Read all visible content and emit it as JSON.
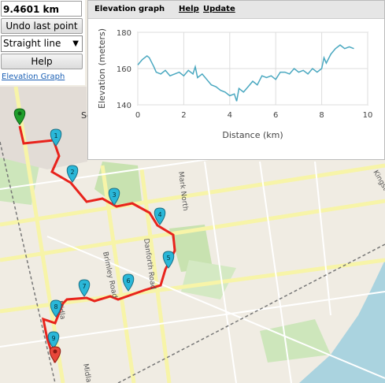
{
  "panel": {
    "distance": "9.4601 km",
    "undo_label": "Undo last point",
    "mode_value": "Straight line",
    "help_label": "Help",
    "elevation_link": "Elevation Graph"
  },
  "graph_window": {
    "title": "Elevation graph",
    "help": "Help",
    "update": "Update"
  },
  "map": {
    "labels": [
      "Scarbo",
      "Brimley Road",
      "Danforth Road",
      "Midla",
      "Midla",
      "Kingst",
      "Mark North"
    ],
    "waypoints": [
      "1",
      "2",
      "3",
      "4",
      "5",
      "6",
      "7",
      "8",
      "9"
    ],
    "route_color": "#e8231c",
    "marker_color": "#2ab7d8",
    "start_color": "#1f9e2c",
    "end_color": "#e8473a"
  },
  "chart_data": {
    "type": "line",
    "xlabel": "Distance (km)",
    "ylabel": "Elevation (meters)",
    "xlim": [
      0,
      10
    ],
    "ylim": [
      140,
      180
    ],
    "xticks": [
      "0",
      "2",
      "4",
      "6",
      "8",
      "10"
    ],
    "yticks": [
      "140",
      "160",
      "180"
    ],
    "grid": true,
    "color": "#4aa8c0",
    "x": [
      0,
      0.2,
      0.4,
      0.5,
      0.7,
      0.8,
      1.0,
      1.2,
      1.4,
      1.6,
      1.8,
      2.0,
      2.2,
      2.4,
      2.5,
      2.6,
      2.8,
      3.0,
      3.2,
      3.4,
      3.6,
      3.8,
      4.0,
      4.2,
      4.3,
      4.4,
      4.6,
      4.8,
      5.0,
      5.2,
      5.4,
      5.6,
      5.8,
      6.0,
      6.2,
      6.4,
      6.6,
      6.8,
      7.0,
      7.2,
      7.4,
      7.6,
      7.8,
      8.0,
      8.1,
      8.2,
      8.4,
      8.6,
      8.8,
      9.0,
      9.2,
      9.4
    ],
    "y": [
      162,
      165,
      167,
      166,
      161,
      158,
      157,
      159,
      156,
      157,
      158,
      156,
      159,
      157,
      161,
      155,
      157,
      154,
      151,
      150,
      148,
      147,
      145,
      146,
      142,
      149,
      147,
      150,
      153,
      151,
      156,
      155,
      156,
      154,
      158,
      158,
      157,
      160,
      158,
      159,
      157,
      160,
      158,
      160,
      166,
      163,
      168,
      171,
      173,
      171,
      172,
      171
    ]
  }
}
